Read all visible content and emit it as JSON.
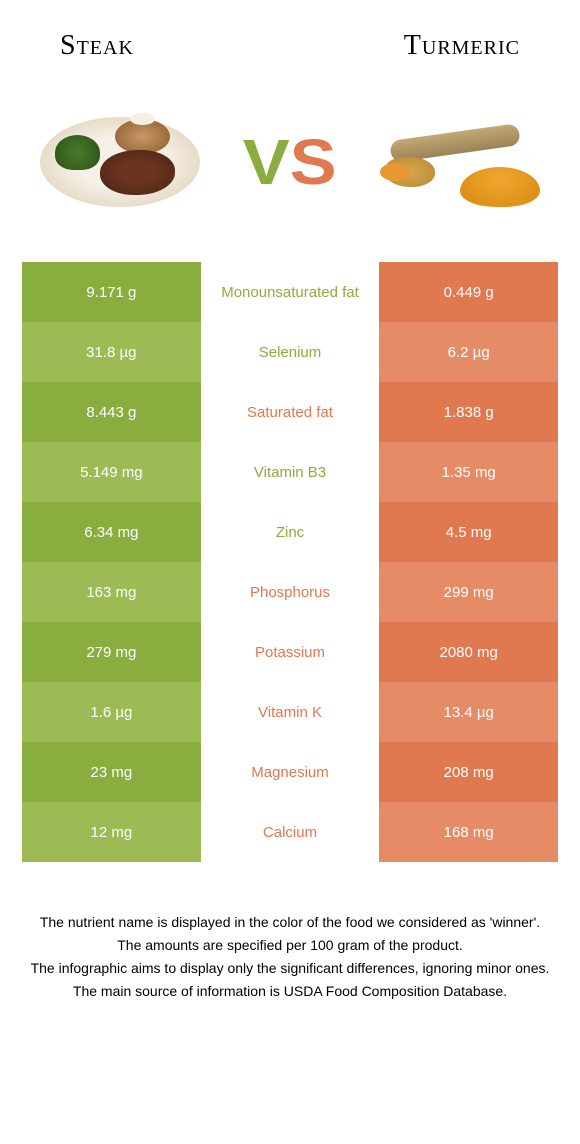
{
  "header": {
    "left": "Steak",
    "right": "Turmeric"
  },
  "vs": {
    "v": "V",
    "s": "S"
  },
  "colors": {
    "green": "#8aad3f",
    "green_light": "#9cbb55",
    "orange": "#e07850",
    "orange_light": "#e58b66"
  },
  "rows": [
    {
      "left": "9.171 g",
      "label": "Monounsaturated fat",
      "right": "0.449 g",
      "winner": "left"
    },
    {
      "left": "31.8 µg",
      "label": "Selenium",
      "right": "6.2 µg",
      "winner": "left"
    },
    {
      "left": "8.443 g",
      "label": "Saturated fat",
      "right": "1.838 g",
      "winner": "right"
    },
    {
      "left": "5.149 mg",
      "label": "Vitamin B3",
      "right": "1.35 mg",
      "winner": "left"
    },
    {
      "left": "6.34 mg",
      "label": "Zinc",
      "right": "4.5 mg",
      "winner": "left"
    },
    {
      "left": "163 mg",
      "label": "Phosphorus",
      "right": "299 mg",
      "winner": "right"
    },
    {
      "left": "279 mg",
      "label": "Potassium",
      "right": "2080 mg",
      "winner": "right"
    },
    {
      "left": "1.6 µg",
      "label": "Vitamin K",
      "right": "13.4 µg",
      "winner": "right"
    },
    {
      "left": "23 mg",
      "label": "Magnesium",
      "right": "208 mg",
      "winner": "right"
    },
    {
      "left": "12 mg",
      "label": "Calcium",
      "right": "168 mg",
      "winner": "right"
    }
  ],
  "footer": {
    "l1": "The nutrient name is displayed in the color of the food we considered as 'winner'.",
    "l2": "The amounts are specified per 100 gram of the product.",
    "l3": "The infographic aims to display only the significant differences, ignoring minor ones.",
    "l4": "The main source of information is USDA Food Composition Database."
  }
}
